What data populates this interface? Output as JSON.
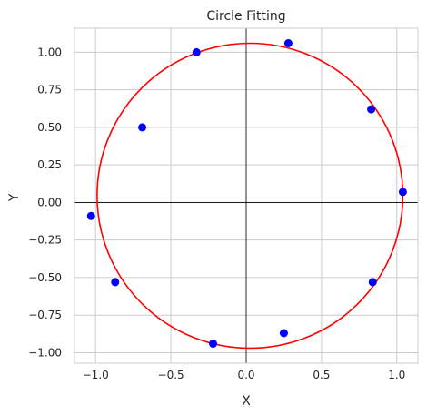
{
  "chart_data": {
    "type": "scatter",
    "title": "Circle Fitting",
    "xlabel": "X",
    "ylabel": "Y",
    "xlim": [
      -1.14,
      1.14
    ],
    "ylim": [
      -1.07,
      1.16
    ],
    "xticks": [
      -1.0,
      -0.5,
      0.0,
      0.5,
      1.0
    ],
    "xtick_labels": [
      "−1.0",
      "−0.5",
      "0.0",
      "0.5",
      "1.0"
    ],
    "yticks": [
      -1.0,
      -0.75,
      -0.5,
      -0.25,
      0.0,
      0.25,
      0.5,
      0.75,
      1.0
    ],
    "ytick_labels": [
      "−1.00",
      "−0.75",
      "−0.50",
      "−0.25",
      "0.00",
      "0.25",
      "0.50",
      "0.75",
      "1.00"
    ],
    "grid": true,
    "points": {
      "color": "#0000ff",
      "x": [
        -1.03,
        -0.87,
        -0.69,
        -0.33,
        -0.22,
        0.25,
        0.28,
        0.83,
        0.84,
        1.04
      ],
      "y": [
        -0.09,
        -0.53,
        0.5,
        1.0,
        -0.94,
        -0.87,
        1.06,
        0.62,
        -0.53,
        0.07
      ]
    },
    "fitted_circle": {
      "color": "#ff0000",
      "center": [
        0.025,
        0.045
      ],
      "radius": 1.015
    },
    "reference_lines": {
      "x": 0,
      "y": 0,
      "color": "#000000"
    }
  }
}
